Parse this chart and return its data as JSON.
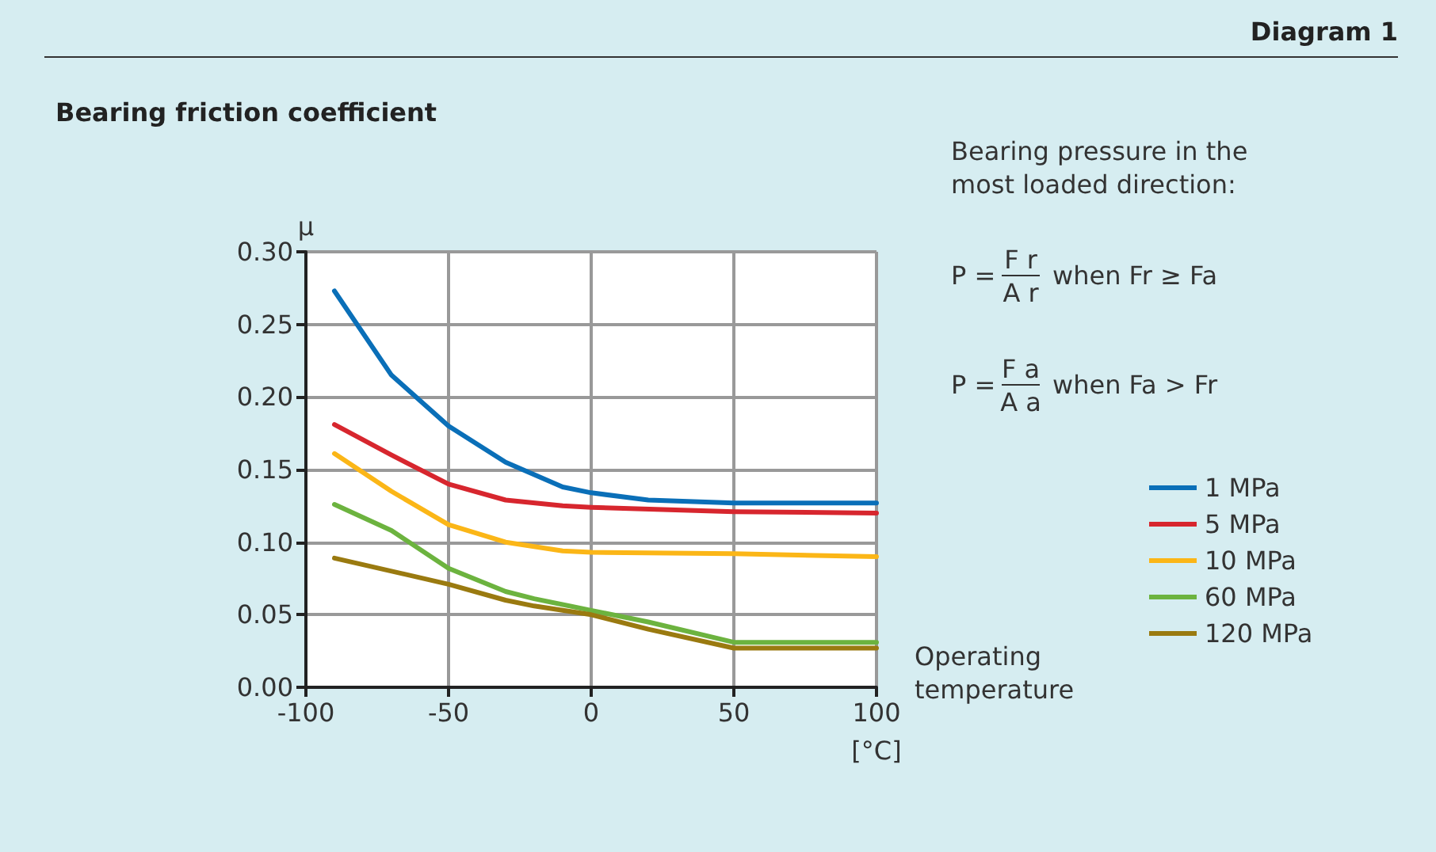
{
  "chart_data": {
    "type": "line",
    "title": "Bearing friction coefficient",
    "ylabel": "μ",
    "xlabel": "Operating temperature",
    "annotations": [
      "Diagram 1",
      "Bearing pressure in the\nmost loaded direction:",
      "P = F r A r when Fr ≥ Fa",
      "P = F a A a when Fa > Fr",
      "[°C]"
    ],
    "xlim": [
      -100,
      100
    ],
    "xticks": [
      -100,
      -50,
      0,
      50,
      100
    ],
    "ylim": [
      0,
      0.3
    ],
    "yticks": [
      {
        "value": 0,
        "label": "0.00"
      },
      {
        "value": 0.05,
        "label": "0.05"
      },
      {
        "value": 0.1,
        "label": "0.10"
      },
      {
        "value": 0.15,
        "label": "0.15"
      },
      {
        "value": 0.2,
        "label": "0.20"
      },
      {
        "value": 0.25,
        "label": "0.25"
      },
      {
        "value": 0.3,
        "label": "0.30"
      }
    ],
    "grid": true,
    "legend": "right",
    "marker": "none",
    "line_style": "solid",
    "series": [
      {
        "name": "1 MPa",
        "color": "#0a6fb8",
        "x": [
          -90,
          -70,
          -50,
          -30,
          -10,
          0,
          20,
          50,
          100
        ],
        "values": [
          0.273,
          0.215,
          0.18,
          0.155,
          0.138,
          0.134,
          0.129,
          0.127,
          0.127
        ]
      },
      {
        "name": "5 MPa",
        "color": "#d7262e",
        "x": [
          -90,
          -70,
          -50,
          -30,
          -10,
          0,
          50,
          100
        ],
        "values": [
          0.181,
          0.16,
          0.14,
          0.129,
          0.125,
          0.124,
          0.121,
          0.12
        ]
      },
      {
        "name": "10 MPa",
        "color": "#fbb617",
        "x": [
          -90,
          -70,
          -50,
          -30,
          -10,
          0,
          50,
          100
        ],
        "values": [
          0.161,
          0.135,
          0.112,
          0.1,
          0.094,
          0.093,
          0.092,
          0.09
        ]
      },
      {
        "name": "60 MPa",
        "color": "#6cb33f",
        "x": [
          -90,
          -70,
          -50,
          -30,
          -20,
          0,
          20,
          50,
          100
        ],
        "values": [
          0.126,
          0.108,
          0.082,
          0.066,
          0.061,
          0.053,
          0.045,
          0.031,
          0.031
        ]
      },
      {
        "name": "120 MPa",
        "color": "#9a7a10",
        "x": [
          -90,
          -50,
          -30,
          -20,
          0,
          20,
          50,
          100
        ],
        "values": [
          0.089,
          0.071,
          0.06,
          0.056,
          0.05,
          0.04,
          0.027,
          0.027
        ]
      }
    ]
  }
}
